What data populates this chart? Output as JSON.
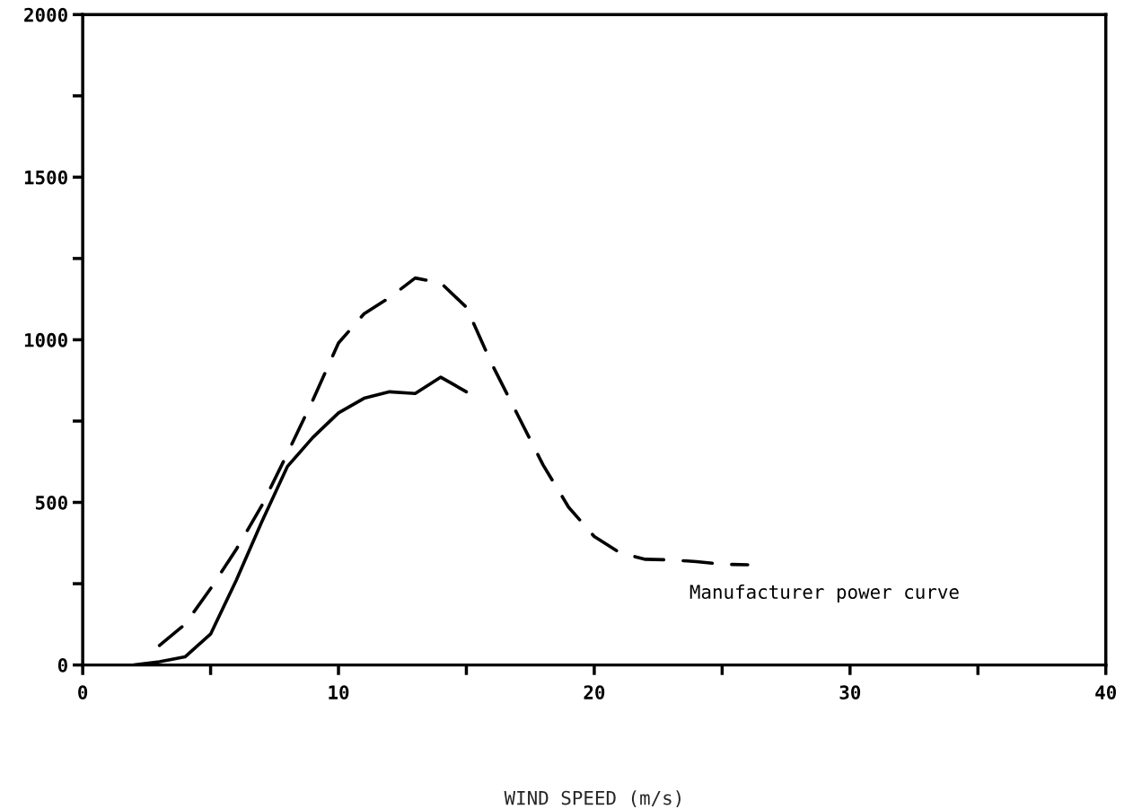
{
  "chart_data": {
    "type": "line",
    "xlabel": "WIND SPEED (m/s)",
    "xlim": [
      0,
      40
    ],
    "ylim": [
      0,
      2000
    ],
    "xticks": [
      0,
      {
        "value": 5,
        "label": null
      },
      10,
      {
        "value": 15,
        "label": null
      },
      20,
      {
        "value": 25,
        "label": null
      },
      30,
      {
        "value": 35,
        "label": null
      },
      40
    ],
    "yticks": [
      0,
      {
        "value": 250,
        "label": null
      },
      500,
      {
        "value": 750,
        "label": null
      },
      1000,
      {
        "value": 1250,
        "label": null
      },
      1500,
      {
        "value": 1750,
        "label": null
      },
      2000
    ],
    "grid": false,
    "legend": false,
    "series": [
      {
        "color": "#000000",
        "line_style": "solid",
        "x": [
          2,
          3,
          4,
          5,
          6,
          7,
          8,
          9,
          10,
          11,
          12,
          13,
          14,
          15
        ],
        "values": [
          0,
          10,
          25,
          95,
          260,
          440,
          610,
          700,
          775,
          820,
          840,
          835,
          885,
          840
        ]
      },
      {
        "name": "Manufacturer power curve",
        "color": "#000000",
        "line_style": "dashed",
        "x": [
          3,
          4,
          5,
          6,
          7,
          8,
          9,
          10,
          11,
          12,
          13,
          14,
          15,
          16,
          17,
          18,
          19,
          20,
          21,
          22,
          23,
          24,
          25,
          26
        ],
        "values": [
          60,
          125,
          235,
          355,
          490,
          650,
          815,
          990,
          1080,
          1130,
          1190,
          1175,
          1100,
          925,
          770,
          615,
          485,
          395,
          345,
          325,
          323,
          318,
          310,
          308
        ]
      }
    ]
  }
}
